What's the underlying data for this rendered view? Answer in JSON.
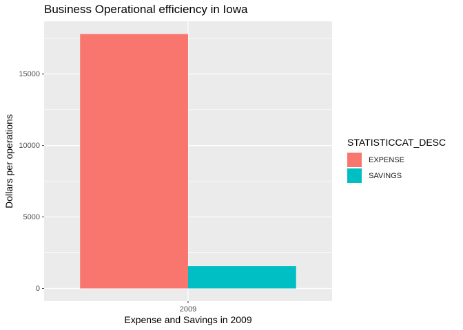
{
  "chart_data": {
    "type": "bar",
    "title": "Business Operational efficiency in Iowa",
    "xlabel": "Expense and Savings in 2009",
    "ylabel": "Dollars per operations",
    "categories": [
      "2009"
    ],
    "position": "dodge",
    "series": [
      {
        "name": "EXPENSE",
        "color": "#F8766D",
        "values": [
          17800
        ]
      },
      {
        "name": "SAVINGS",
        "color": "#00BFC4",
        "values": [
          1560
        ]
      }
    ],
    "y_ticks": [
      0,
      5000,
      10000,
      15000
    ],
    "y_tick_labels": [
      "0",
      "5000",
      "10000",
      "15000"
    ],
    "ylim": [
      -890,
      18690
    ],
    "grid": true,
    "panel_background": "#EBEBEB",
    "legend": {
      "title": "STATISTICCAT_DESC",
      "placement": "right"
    }
  }
}
